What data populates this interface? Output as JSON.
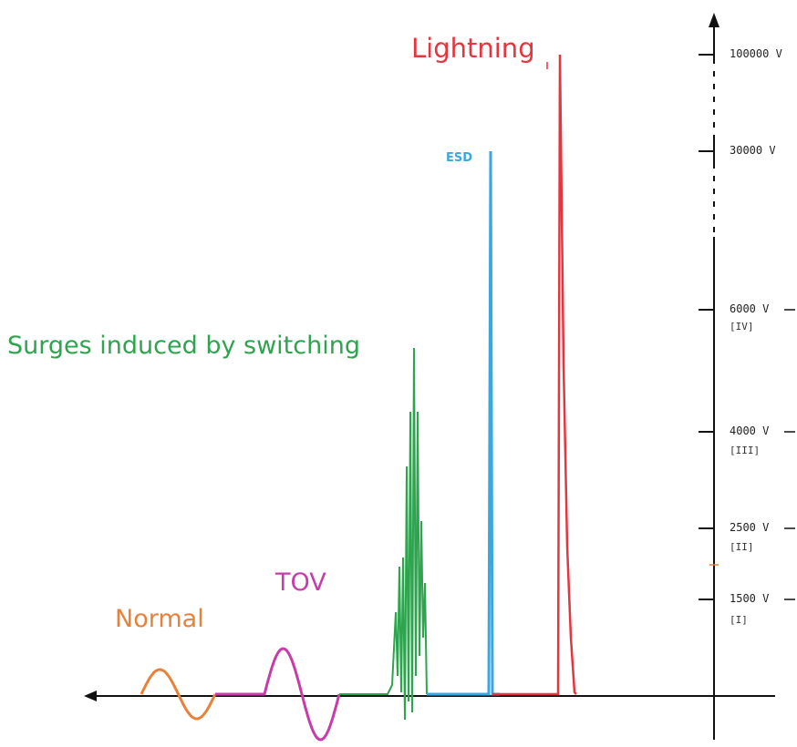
{
  "labels": {
    "normal": "Normal",
    "tov": "TOV",
    "switching": "Surges induced by switching",
    "esd": "ESD",
    "lightning": "Lightning"
  },
  "voltage_ticks": [
    {
      "value": "100000 V",
      "category": ""
    },
    {
      "value": "30000 V",
      "category": ""
    },
    {
      "value": "6000 V",
      "category": "[IV]"
    },
    {
      "value": "4000 V",
      "category": "[III]"
    },
    {
      "value": "2500 V",
      "category": "[II]"
    },
    {
      "value": "1500 V",
      "category": "[I]"
    }
  ],
  "colors": {
    "normal": "#e8813a",
    "tov": "#c83ba9",
    "switching": "#2ea44f",
    "esd": "#3aa7e0",
    "lightning": "#e5363f",
    "axis": "#111111"
  }
}
